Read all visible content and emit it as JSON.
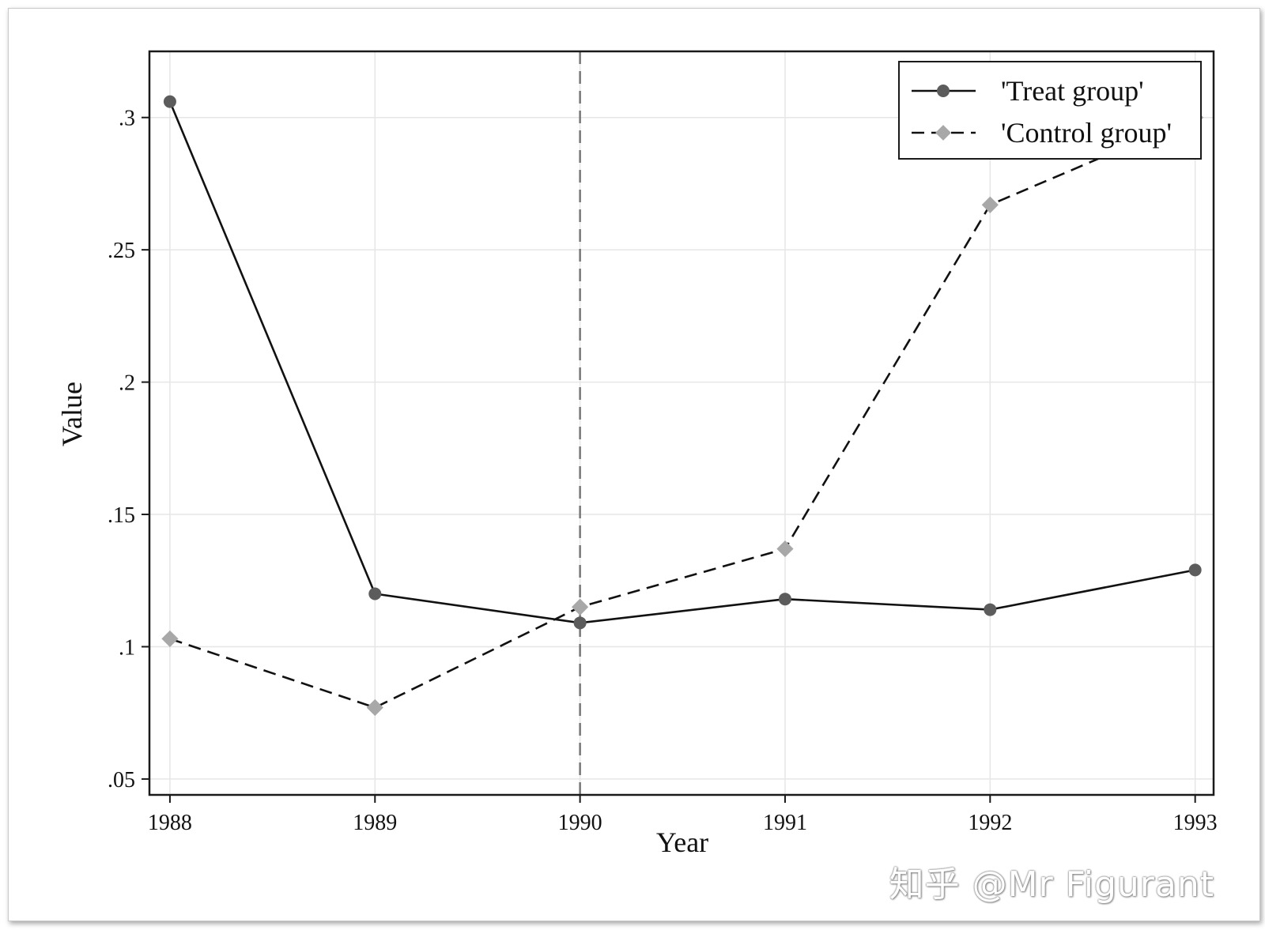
{
  "chart_data": {
    "type": "line",
    "x": [
      1988,
      1989,
      1990,
      1991,
      1992,
      1993
    ],
    "series": [
      {
        "name": "'Treat group'",
        "values": [
          0.306,
          0.12,
          0.109,
          0.118,
          0.114,
          0.129
        ],
        "style": "solid",
        "marker": "circle",
        "color": "#5c5c5c"
      },
      {
        "name": "'Control group'",
        "values": [
          0.103,
          0.077,
          0.115,
          0.137,
          0.267,
          0.3
        ],
        "style": "dashed",
        "marker": "diamond",
        "color": "#a8a8a8"
      }
    ],
    "xlabel": "Year",
    "ylabel": "Value",
    "x_ticks": [
      "1988",
      "1989",
      "1990",
      "1991",
      "1992",
      "1993"
    ],
    "y_ticks": [
      {
        "value": 0.05,
        "label": ".05"
      },
      {
        "value": 0.1,
        "label": ".1"
      },
      {
        "value": 0.15,
        "label": ".15"
      },
      {
        "value": 0.2,
        "label": ".2"
      },
      {
        "value": 0.25,
        "label": ".25"
      },
      {
        "value": 0.3,
        "label": ".3"
      }
    ],
    "xlim": [
      1987.9,
      1993.09
    ],
    "ylim": [
      0.044,
      0.325
    ],
    "reference_line": {
      "x": 1990,
      "style": "dashed"
    },
    "grid": true,
    "legend_position": "top-right"
  },
  "watermark": "知乎 @Mr Figurant"
}
